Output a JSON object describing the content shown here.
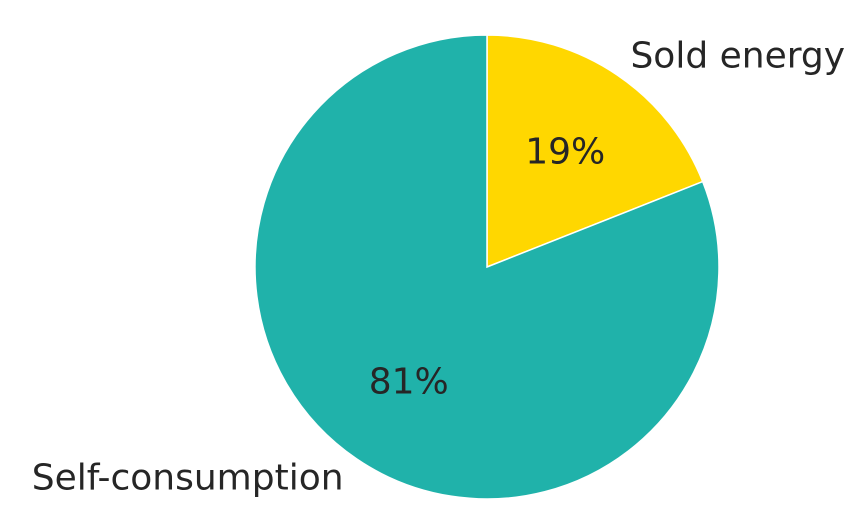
{
  "chart_data": {
    "type": "pie",
    "title": "",
    "start_angle_deg": 90,
    "direction": "clockwise",
    "slices": [
      {
        "label": "Sold energy",
        "value": 19,
        "pct_label": "19%",
        "color": "#FFD700"
      },
      {
        "label": "Self-consumption",
        "value": 81,
        "pct_label": "81%",
        "color": "#20B2AA"
      }
    ],
    "edge_color": "#ffffff",
    "legend": "none"
  }
}
